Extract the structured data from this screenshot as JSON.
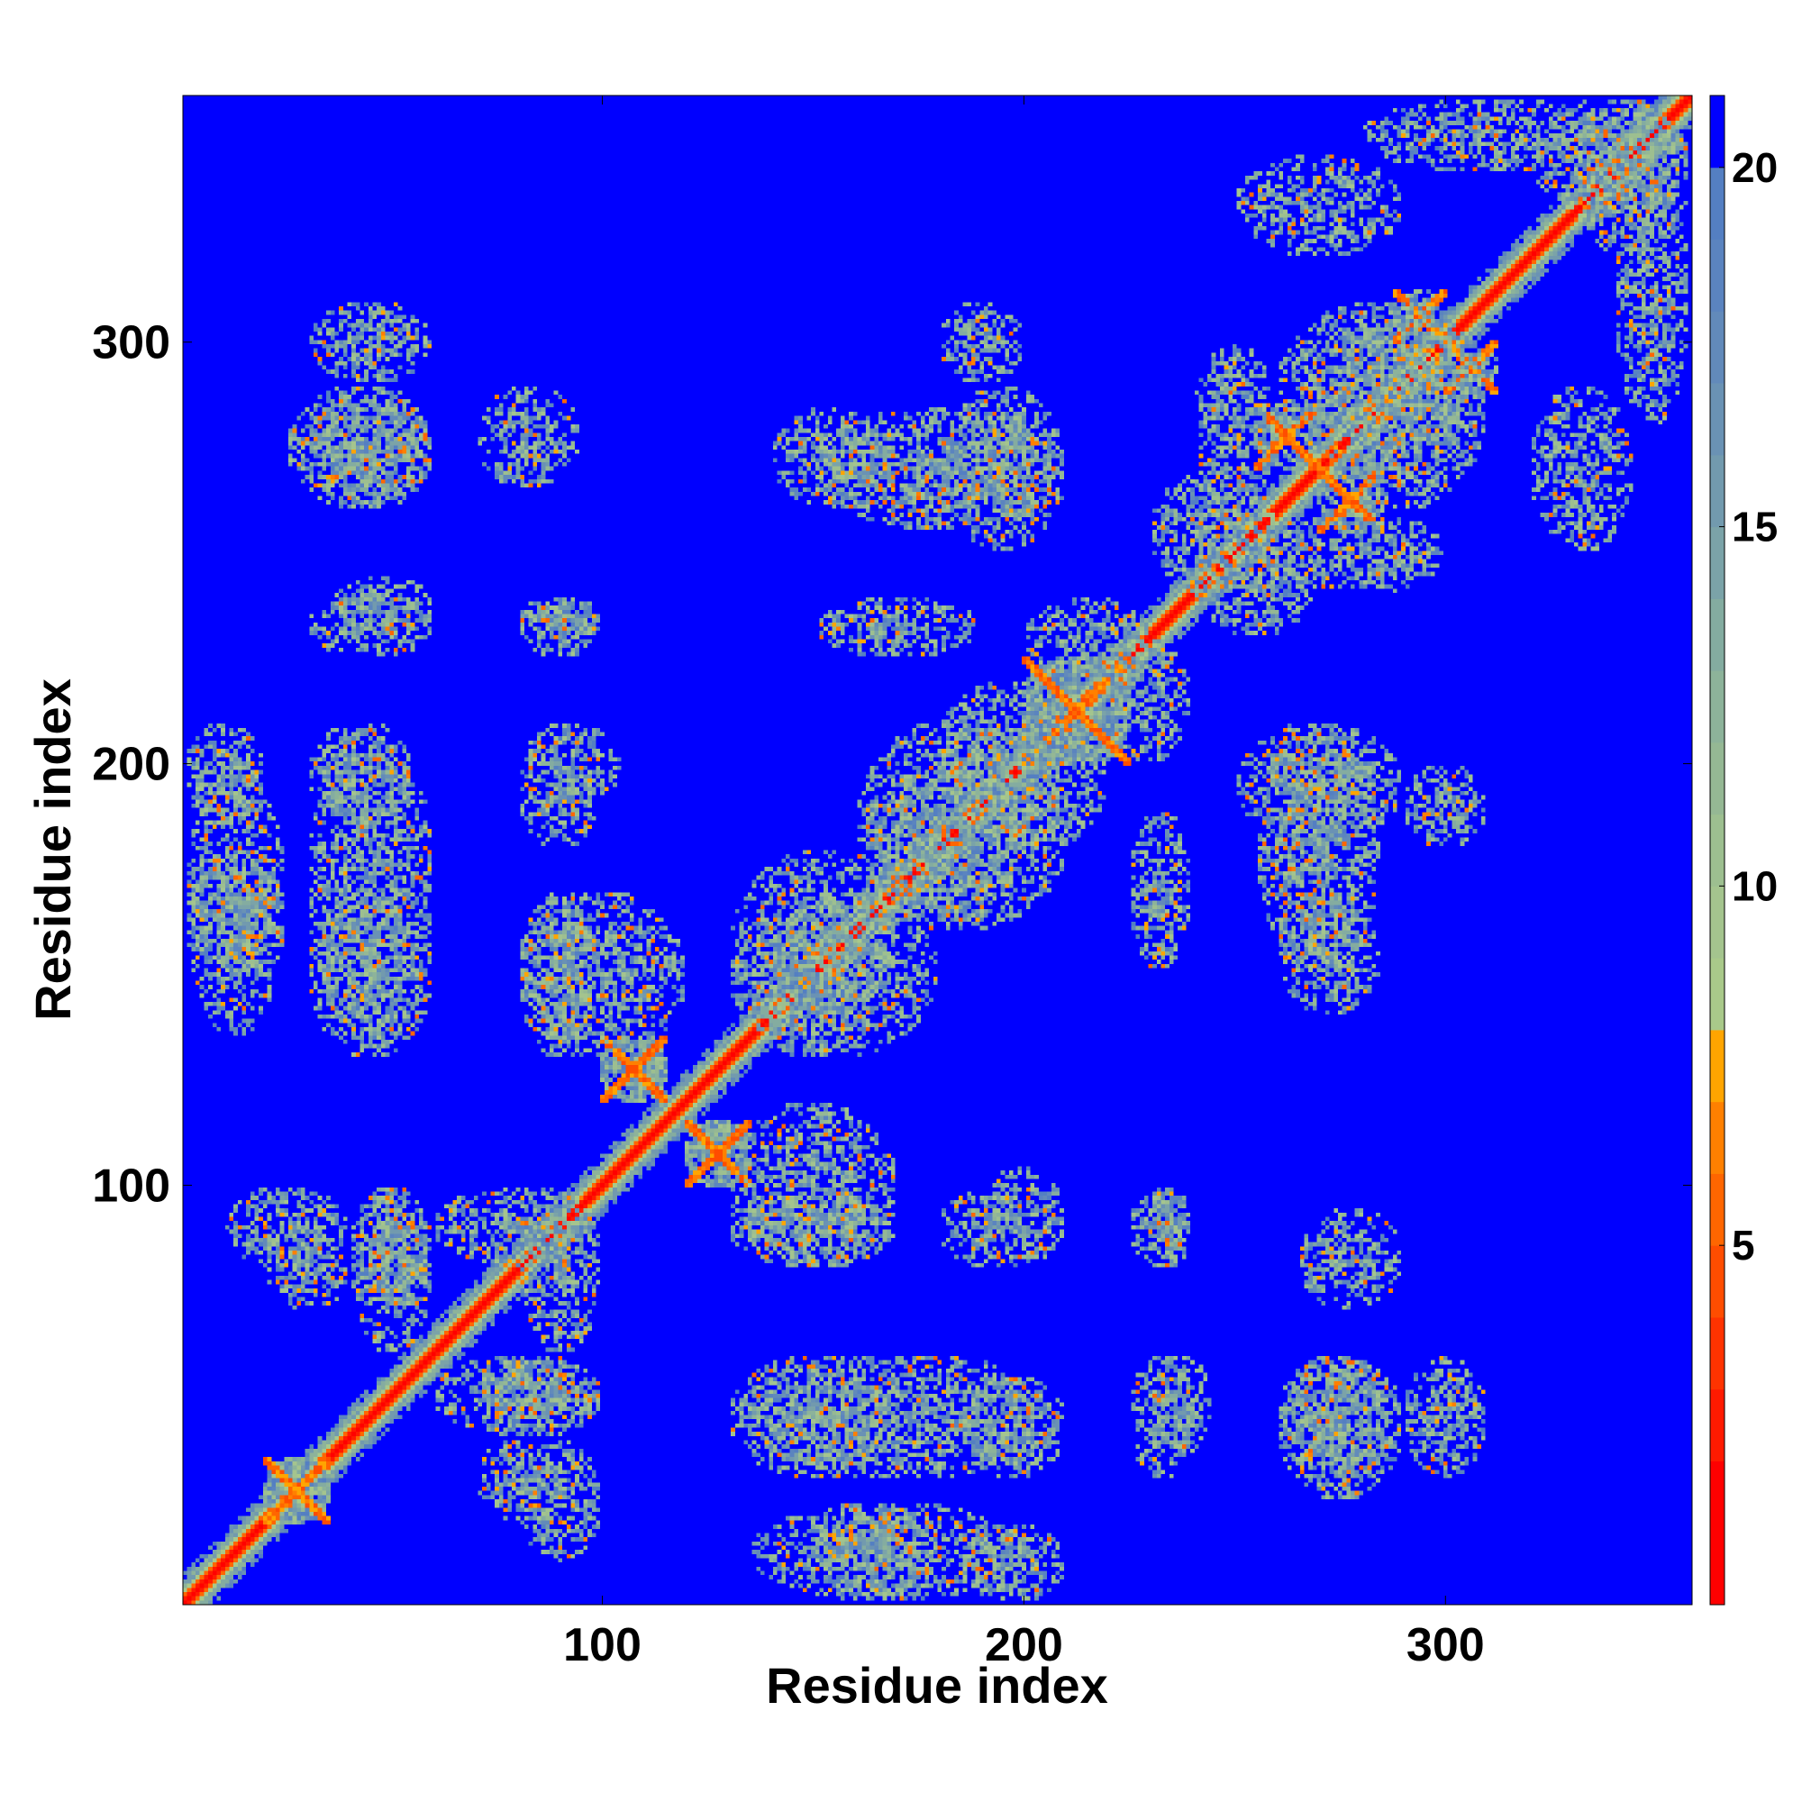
{
  "chart_data": {
    "type": "heatmap",
    "title": "",
    "xlabel": "Residue index",
    "ylabel": "Residue index",
    "n_residues": 358,
    "xlim": [
      1,
      358
    ],
    "ylim": [
      1,
      358
    ],
    "x_ticks": [
      100,
      200,
      300
    ],
    "y_ticks": [
      100,
      200,
      300
    ],
    "x_tick_labels": [
      "100",
      "200",
      "300"
    ],
    "y_tick_labels": [
      "100",
      "200",
      "300"
    ],
    "colorbar": {
      "range": [
        0,
        21
      ],
      "ticks": [
        5,
        10,
        15,
        20
      ],
      "tick_labels": [
        "5",
        "10",
        "15",
        "20"
      ],
      "bins": [
        {
          "max": 2,
          "color": "#ff0000"
        },
        {
          "max": 3,
          "color": "#ff1a00"
        },
        {
          "max": 4,
          "color": "#ff3300"
        },
        {
          "max": 5,
          "color": "#ff4d00"
        },
        {
          "max": 6,
          "color": "#ff6600"
        },
        {
          "max": 7,
          "color": "#ff8000"
        },
        {
          "max": 8,
          "color": "#ffa500"
        },
        {
          "max": 9,
          "color": "#a9c98a"
        },
        {
          "max": 10,
          "color": "#a4c48e"
        },
        {
          "max": 11,
          "color": "#9dbf90"
        },
        {
          "max": 12,
          "color": "#95b894"
        },
        {
          "max": 13,
          "color": "#8db39a"
        },
        {
          "max": 14,
          "color": "#84aca0"
        },
        {
          "max": 15,
          "color": "#7ba3a8"
        },
        {
          "max": 16,
          "color": "#729aae"
        },
        {
          "max": 17,
          "color": "#6a92b4"
        },
        {
          "max": 18,
          "color": "#628aba"
        },
        {
          "max": 19,
          "color": "#5b84bf"
        },
        {
          "max": 20,
          "color": "#547fc2"
        },
        {
          "max": 21,
          "color": "#0000ff"
        }
      ]
    },
    "background_color": "#0000ff",
    "contact_regions": [
      {
        "x": [
          20,
          35
        ],
        "y": [
          20,
          35
        ],
        "kind": "cross"
      },
      {
        "x": [
          300,
          312
        ],
        "y": [
          288,
          300
        ],
        "kind": "cross"
      },
      {
        "x": [
          270,
          285
        ],
        "y": [
          255,
          270
        ],
        "kind": "cross"
      },
      {
        "x": [
          120,
          135
        ],
        "y": [
          100,
          115
        ],
        "kind": "cross"
      },
      {
        "x": [
          100,
          115
        ],
        "y": [
          120,
          135
        ],
        "kind": "cross"
      },
      {
        "x": [
          200,
          225
        ],
        "y": [
          200,
          225
        ],
        "kind": "cross"
      },
      {
        "x": [
          60,
          100
        ],
        "y": [
          80,
          100
        ],
        "kind": "patch"
      },
      {
        "x": [
          10,
          40
        ],
        "y": [
          80,
          100
        ],
        "kind": "patch"
      },
      {
        "x": [
          40,
          60
        ],
        "y": [
          60,
          100
        ],
        "kind": "patch"
      },
      {
        "x": [
          70,
          100
        ],
        "y": [
          40,
          60
        ],
        "kind": "patch"
      },
      {
        "x": [
          130,
          170
        ],
        "y": [
          80,
          100
        ],
        "kind": "patch"
      },
      {
        "x": [
          80,
          120
        ],
        "y": [
          130,
          170
        ],
        "kind": "patch"
      },
      {
        "x": [
          130,
          180
        ],
        "y": [
          130,
          170
        ],
        "kind": "patch"
      },
      {
        "x": [
          160,
          210
        ],
        "y": [
          160,
          200
        ],
        "kind": "patch"
      },
      {
        "x": [
          180,
          210
        ],
        "y": [
          190,
          220
        ],
        "kind": "patch"
      },
      {
        "x": [
          220,
          240
        ],
        "y": [
          200,
          230
        ],
        "kind": "patch"
      },
      {
        "x": [
          230,
          260
        ],
        "y": [
          240,
          270
        ],
        "kind": "patch"
      },
      {
        "x": [
          260,
          300
        ],
        "y": [
          240,
          260
        ],
        "kind": "patch"
      },
      {
        "x": [
          260,
          310
        ],
        "y": [
          270,
          310
        ],
        "kind": "patch"
      },
      {
        "x": [
          330,
          358
        ],
        "y": [
          320,
          358
        ],
        "kind": "patch"
      },
      {
        "x": [
          280,
          340
        ],
        "y": [
          340,
          358
        ],
        "kind": "patch"
      },
      {
        "x": [
          30,
          60
        ],
        "y": [
          260,
          290
        ],
        "kind": "patch"
      },
      {
        "x": [
          30,
          60
        ],
        "y": [
          225,
          240
        ],
        "kind": "patch"
      },
      {
        "x": [
          80,
          100
        ],
        "y": [
          225,
          240
        ],
        "kind": "patch"
      },
      {
        "x": [
          30,
          55
        ],
        "y": [
          185,
          210
        ],
        "kind": "patch"
      },
      {
        "x": [
          1,
          20
        ],
        "y": [
          185,
          210
        ],
        "kind": "patch"
      },
      {
        "x": [
          1,
          25
        ],
        "y": [
          150,
          180
        ],
        "kind": "patch"
      },
      {
        "x": [
          30,
          60
        ],
        "y": [
          130,
          170
        ],
        "kind": "patch"
      },
      {
        "x": [
          80,
          105
        ],
        "y": [
          190,
          210
        ],
        "kind": "patch"
      },
      {
        "x": [
          150,
          210
        ],
        "y": [
          255,
          285
        ],
        "kind": "patch"
      },
      {
        "x": [
          150,
          190
        ],
        "y": [
          225,
          240
        ],
        "kind": "patch"
      },
      {
        "x": [
          250,
          290
        ],
        "y": [
          180,
          210
        ],
        "kind": "patch"
      },
      {
        "x": [
          260,
          285
        ],
        "y": [
          140,
          170
        ],
        "kind": "patch"
      },
      {
        "x": [
          320,
          345
        ],
        "y": [
          250,
          290
        ],
        "kind": "patch"
      },
      {
        "x": [
          180,
          200
        ],
        "y": [
          80,
          100
        ],
        "kind": "patch"
      },
      {
        "x": [
          230,
          240
        ],
        "y": [
          80,
          100
        ],
        "kind": "patch"
      },
      {
        "x": [
          135,
          210
        ],
        "y": [
          30,
          60
        ],
        "kind": "patch"
      },
      {
        "x": [
          135,
          200
        ],
        "y": [
          1,
          25
        ],
        "kind": "patch"
      },
      {
        "x": [
          230,
          245
        ],
        "y": [
          35,
          60
        ],
        "kind": "patch"
      },
      {
        "x": [
          260,
          290
        ],
        "y": [
          25,
          60
        ],
        "kind": "patch"
      },
      {
        "x": [
          290,
          310
        ],
        "y": [
          30,
          60
        ],
        "kind": "patch"
      },
      {
        "x": [
          265,
          290
        ],
        "y": [
          70,
          95
        ],
        "kind": "patch"
      },
      {
        "x": [
          70,
          90
        ],
        "y": [
          20,
          40
        ],
        "kind": "patch"
      },
      {
        "x": [
          180,
          200
        ],
        "y": [
          290,
          310
        ],
        "kind": "patch"
      }
    ]
  }
}
